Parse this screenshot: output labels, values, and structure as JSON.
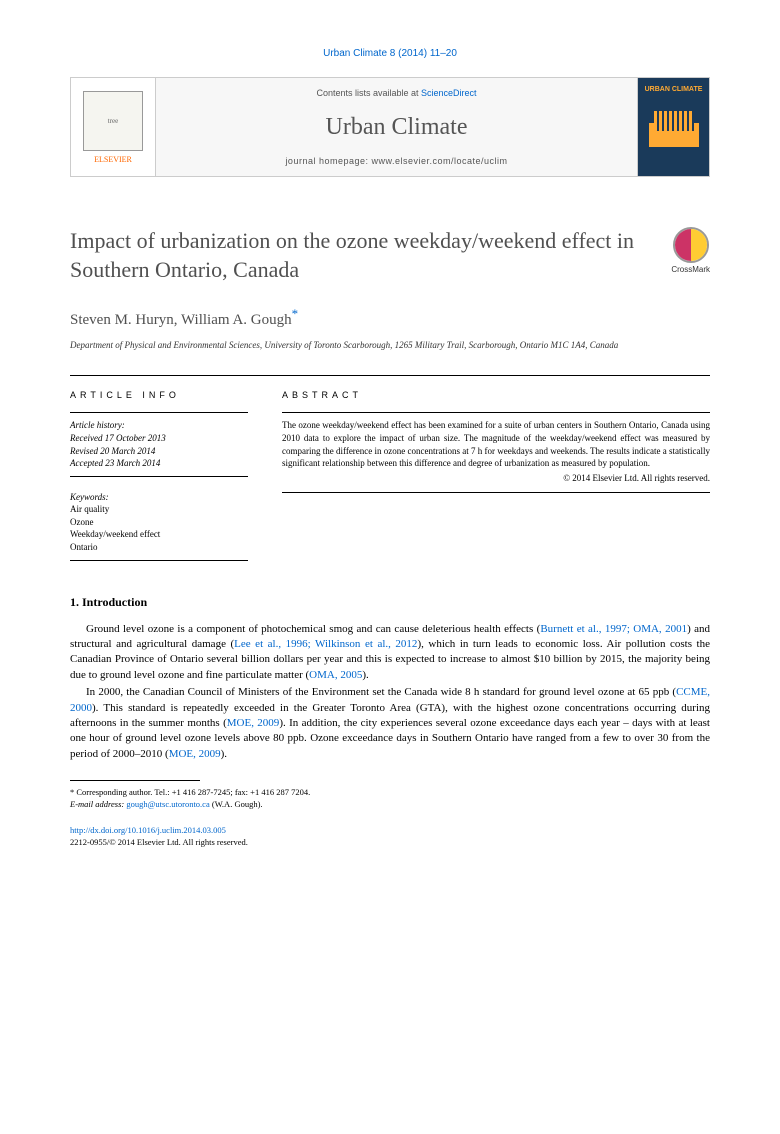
{
  "header": {
    "citation": "Urban Climate 8 (2014) 11–20",
    "contents_prefix": "Contents lists available at ",
    "contents_link": "ScienceDirect",
    "journal_name": "Urban Climate",
    "homepage_label": "journal homepage: ",
    "homepage_url": "www.elsevier.com/locate/uclim",
    "publisher": "ELSEVIER",
    "cover_label": "URBAN CLIMATE"
  },
  "crossmark": {
    "label": "CrossMark"
  },
  "article": {
    "title": "Impact of urbanization on the ozone weekday/weekend effect in Southern Ontario, Canada",
    "authors": "Steven M. Huryn, William A. Gough",
    "corr_symbol": "*",
    "affiliation": "Department of Physical and Environmental Sciences, University of Toronto Scarborough, 1265 Military Trail, Scarborough, Ontario M1C 1A4, Canada"
  },
  "info": {
    "heading": "ARTICLE INFO",
    "history_label": "Article history:",
    "received": "Received 17 October 2013",
    "revised": "Revised 20 March 2014",
    "accepted": "Accepted 23 March 2014",
    "keywords_label": "Keywords:",
    "keywords": [
      "Air quality",
      "Ozone",
      "Weekday/weekend effect",
      "Ontario"
    ]
  },
  "abstract": {
    "heading": "ABSTRACT",
    "text": "The ozone weekday/weekend effect has been examined for a suite of urban centers in Southern Ontario, Canada using 2010 data to explore the impact of urban size. The magnitude of the weekday/weekend effect was measured by comparing the difference in ozone concentrations at 7 h for weekdays and weekends. The results indicate a statistically significant relationship between this difference and degree of urbanization as measured by population.",
    "copyright": "© 2014 Elsevier Ltd. All rights reserved."
  },
  "body": {
    "section_heading": "1. Introduction",
    "p1_a": "Ground level ozone is a component of photochemical smog and can cause deleterious health effects (",
    "p1_cite1": "Burnett et al., 1997; OMA, 2001",
    "p1_b": ") and structural and agricultural damage (",
    "p1_cite2": "Lee et al., 1996; Wilkinson et al., 2012",
    "p1_c": "), which in turn leads to economic loss. Air pollution costs the Canadian Province of Ontario several billion dollars per year and this is expected to increase to almost $10 billion by 2015, the majority being due to ground level ozone and fine particulate matter (",
    "p1_cite3": "OMA, 2005",
    "p1_d": ").",
    "p2_a": "In 2000, the Canadian Council of Ministers of the Environment set the Canada wide 8 h standard for ground level ozone at 65 ppb (",
    "p2_cite1": "CCME, 2000",
    "p2_b": "). This standard is repeatedly exceeded in the Greater Toronto Area (GTA), with the highest ozone concentrations occurring during afternoons in the summer months (",
    "p2_cite2": "MOE, 2009",
    "p2_c": "). In addition, the city experiences several ozone exceedance days each year – days with at least one hour of ground level ozone levels above 80 ppb. Ozone exceedance days in Southern Ontario have ranged from a few to over 30 from the period of 2000–2010 (",
    "p2_cite3": "MOE, 2009",
    "p2_d": ")."
  },
  "footer": {
    "corr_label": "* Corresponding author. Tel.: +1 416 287-7245; fax: +1 416 287 7204.",
    "email_label": "E-mail address: ",
    "email": "gough@utsc.utoronto.ca",
    "email_who": " (W.A. Gough).",
    "doi": "http://dx.doi.org/10.1016/j.uclim.2014.03.005",
    "issn": "2212-0955/© 2014 Elsevier Ltd. All rights reserved."
  }
}
